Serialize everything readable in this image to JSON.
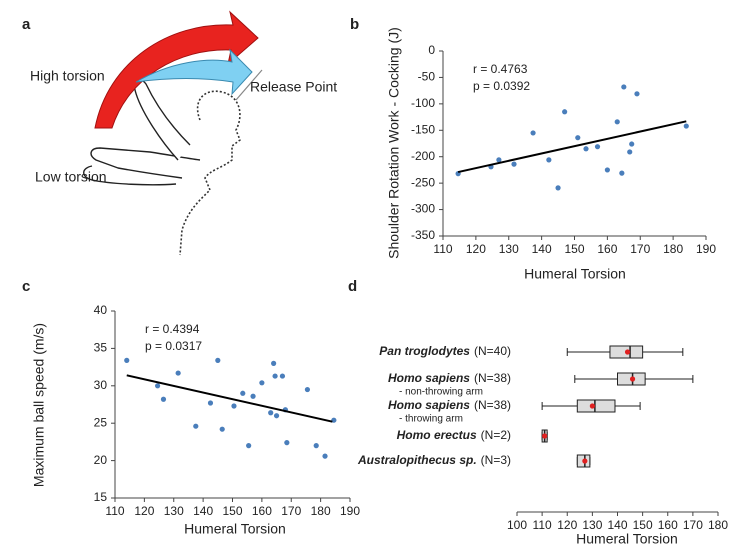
{
  "illustration": {
    "label": "a",
    "texts": [
      "High torsion",
      "Release Point",
      "Low torsion"
    ]
  },
  "chart_data": [
    {
      "type": "scatter",
      "label": "b",
      "color": "#4a7ebb",
      "xlabel": "Humeral Torsion",
      "ylabel": "Shoulder Rotation Work - Cocking  (J)",
      "annotations": [
        "r = 0.4763",
        "p = 0.0392"
      ],
      "x": [
        114.6,
        124.6,
        127,
        131.6,
        137.4,
        142.2,
        145,
        147,
        151,
        153.5,
        157,
        160,
        163,
        164.4,
        165,
        166.8,
        167.4,
        169,
        184
      ],
      "y": [
        -232,
        -219,
        -206,
        -214,
        -155,
        -206,
        -259,
        -115,
        -164,
        -185,
        -181,
        -225,
        -134,
        -231,
        -68,
        -191,
        -176,
        -81,
        -142
      ],
      "trendline": {
        "x": [
          114.6,
          184
        ],
        "y": [
          -229,
          -133
        ],
        "color": "#000000"
      },
      "xlim": [
        110,
        190
      ],
      "xticks": [
        110,
        120,
        130,
        140,
        150,
        160,
        170,
        180,
        190
      ],
      "ylim": [
        -350,
        0
      ],
      "yticks": [
        0,
        -50,
        -100,
        -150,
        -200,
        -250,
        -300,
        -350
      ]
    },
    {
      "type": "scatter",
      "label": "c",
      "color": "#4a7ebb",
      "xlabel": "Humeral Torsion",
      "ylabel": "Maximum ball speed (m/s)",
      "annotations": [
        "r = 0.4394",
        "p = 0.0317"
      ],
      "x": [
        114,
        124.5,
        126.5,
        131.5,
        137.5,
        142.5,
        145,
        146.5,
        150.5,
        153.5,
        155.5,
        157,
        160,
        163,
        164,
        164.5,
        165,
        167,
        168,
        168.5,
        175.5,
        178.5,
        181.5,
        184.5
      ],
      "y": [
        33.4,
        30,
        28.2,
        31.7,
        24.6,
        27.7,
        33.4,
        24.2,
        27.3,
        29,
        22,
        28.6,
        30.4,
        26.4,
        33,
        31.3,
        26,
        31.3,
        26.8,
        22.4,
        29.5,
        22,
        20.6,
        25.4
      ],
      "trendline": {
        "x": [
          114,
          184
        ],
        "y": [
          31.4,
          25.2
        ],
        "color": "#000000"
      },
      "xlim": [
        110,
        190
      ],
      "xticks": [
        110,
        120,
        130,
        140,
        150,
        160,
        170,
        180,
        190
      ],
      "ylim": [
        15,
        40
      ],
      "yticks": [
        15,
        20,
        25,
        30,
        35,
        40
      ]
    },
    {
      "type": "box",
      "label": "d",
      "xlabel": "Humeral Torsion",
      "box_color": "#dddddd",
      "mean_color": "#e02020",
      "groups": [
        {
          "name": "Pan troglodytes",
          "count": "(N=40)",
          "min": 120,
          "q1": 137,
          "median": 145,
          "q3": 150,
          "max": 166,
          "mean": 144
        },
        {
          "name": "Homo sapiens",
          "count": "(N=38)",
          "note": "- non-throwing arm",
          "min": 123,
          "q1": 140,
          "median": 146,
          "q3": 151,
          "max": 170,
          "mean": 146
        },
        {
          "name": "Homo sapiens",
          "count": "(N=38)",
          "note": "- throwing arm",
          "min": 110,
          "q1": 124,
          "median": 131,
          "q3": 139,
          "max": 149,
          "mean": 130
        },
        {
          "name": "Homo erectus",
          "count": "(N=2)",
          "min": 110,
          "q1": 110,
          "median": 111,
          "q3": 112,
          "max": 112,
          "mean": 111
        },
        {
          "name": "Australopithecus sp.",
          "count": "(N=3)",
          "min": 124,
          "q1": 124,
          "median": 127,
          "q3": 129,
          "max": 129,
          "mean": 127
        }
      ],
      "xlim": [
        100,
        180
      ],
      "xticks": [
        100,
        110,
        120,
        130,
        140,
        150,
        160,
        170,
        180
      ]
    }
  ]
}
